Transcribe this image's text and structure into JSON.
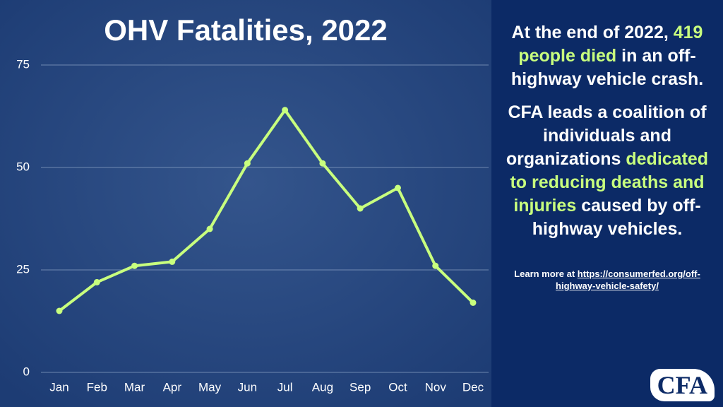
{
  "chart_data": {
    "type": "line",
    "title": "OHV Fatalities, 2022",
    "categories": [
      "Jan",
      "Feb",
      "Mar",
      "Apr",
      "May",
      "Jun",
      "Jul",
      "Aug",
      "Sep",
      "Oct",
      "Nov",
      "Dec"
    ],
    "values": [
      15,
      22,
      26,
      27,
      35,
      51,
      64,
      51,
      40,
      45,
      26,
      17
    ],
    "color": "#c8ff7e",
    "ylim": [
      0,
      75
    ],
    "yticks": [
      0,
      25,
      50,
      75
    ],
    "grid": true
  },
  "side_panel": {
    "intro": {
      "before": "At the end of 2022,",
      "highlight": "419 people died",
      "after": "in an off-highway vehicle crash."
    },
    "mission": {
      "before": "CFA leads a coalition of individuals and organizations",
      "highlight": "dedicated to reducing deaths and injuries",
      "after": "caused by off-highway vehicles."
    },
    "learn_more": {
      "text": "Learn more at",
      "link": "https://consumerfed.org/off-highway-vehicle-safety/"
    },
    "logo": "CFA"
  }
}
